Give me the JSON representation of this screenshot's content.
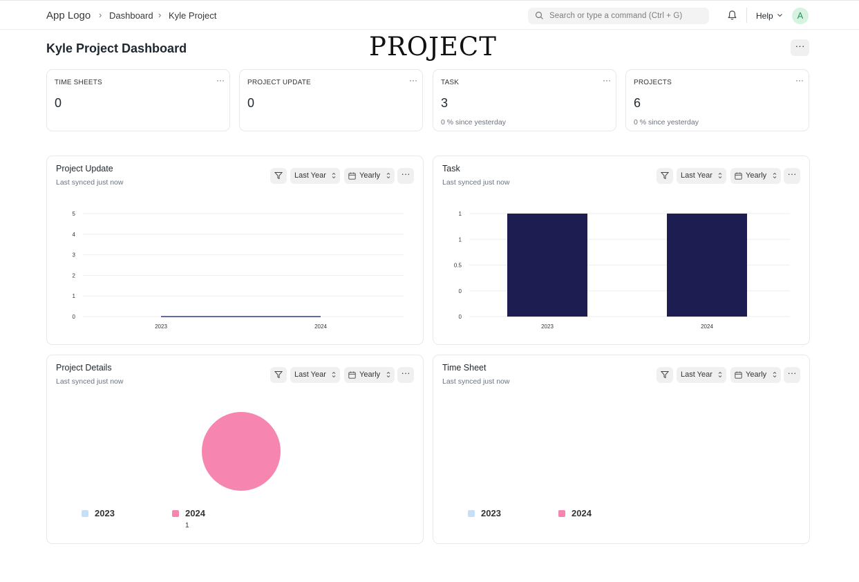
{
  "nav": {
    "app_logo": "App Logo",
    "breadcrumbs": [
      "Dashboard",
      "Kyle Project"
    ],
    "search_placeholder": "Search or type a command (Ctrl + G)",
    "help_label": "Help",
    "avatar_initial": "A"
  },
  "page": {
    "title": "Kyle Project Dashboard",
    "watermark": "PROJECT"
  },
  "number_cards": [
    {
      "label": "TIME SHEETS",
      "value": "0",
      "sub": ""
    },
    {
      "label": "PROJECT UPDATE",
      "value": "0",
      "sub": ""
    },
    {
      "label": "TASK",
      "value": "3",
      "sub": "0 % since yesterday"
    },
    {
      "label": "PROJECTS",
      "value": "6",
      "sub": "0 % since yesterday"
    }
  ],
  "charts": [
    {
      "title": "Project Update",
      "synced": "Last synced just now",
      "range": "Last Year",
      "period": "Yearly"
    },
    {
      "title": "Task",
      "synced": "Last synced just now",
      "range": "Last Year",
      "period": "Yearly"
    },
    {
      "title": "Project Details",
      "synced": "Last synced just now",
      "range": "Last Year",
      "period": "Yearly"
    },
    {
      "title": "Time Sheet",
      "synced": "Last synced just now",
      "range": "Last Year",
      "period": "Yearly"
    }
  ],
  "colors": {
    "bar": "#1e1d52",
    "line": "#2d3a8c",
    "pie_2023": "#c7dff5",
    "pie_2024": "#f685b0",
    "grid": "#eeeeee"
  },
  "chart_data": [
    {
      "type": "line",
      "title": "Project Update",
      "x": [
        "2023",
        "2024"
      ],
      "series": [
        {
          "values": [
            0,
            0
          ]
        }
      ],
      "yticks": [
        "0",
        "1",
        "2",
        "3",
        "4",
        "5"
      ],
      "ylim": [
        0,
        5
      ]
    },
    {
      "type": "bar",
      "title": "Task",
      "categories": [
        "2023",
        "2024"
      ],
      "values": [
        1,
        1
      ],
      "yticks": [
        "0",
        "0",
        "0.5",
        "1",
        "1"
      ],
      "ylim": [
        0,
        1
      ]
    },
    {
      "type": "pie",
      "title": "Project Details",
      "labels": [
        "2023",
        "2024"
      ],
      "values": [
        0,
        1
      ],
      "value_labels": [
        "",
        "1"
      ]
    },
    {
      "type": "pie",
      "title": "Time Sheet",
      "labels": [
        "2023",
        "2024"
      ],
      "values": [
        0,
        0
      ]
    }
  ]
}
